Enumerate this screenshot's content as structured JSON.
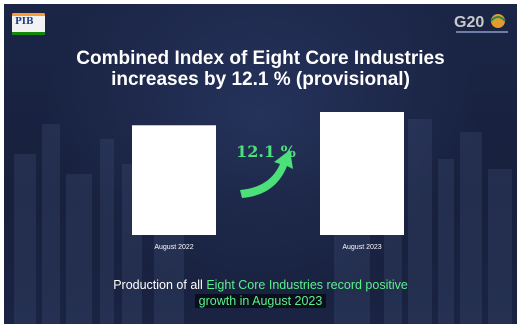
{
  "header": {
    "logo_left_text": "PIB",
    "logo_right_text": "G20",
    "title_line1": "Combined Index of Eight Core Industries",
    "title_line2": "increases by 12.1 % (provisional)"
  },
  "chart_data": {
    "type": "bar",
    "categories": [
      "August 2022",
      "August 2023"
    ],
    "values": [
      100,
      112.1
    ],
    "annotation": "12.1 %",
    "title": "",
    "xlabel": "",
    "ylabel": "",
    "grid": false,
    "bar_color": "#ffffff",
    "annotation_color": "#4be07a"
  },
  "caption": {
    "line1_prefix": "Production of all",
    "line1_highlight": "Eight Core Industries record positive",
    "line2_highlight": "growth in August 2023"
  },
  "colors": {
    "background": "#1a2240",
    "accent": "#5cf08c"
  }
}
